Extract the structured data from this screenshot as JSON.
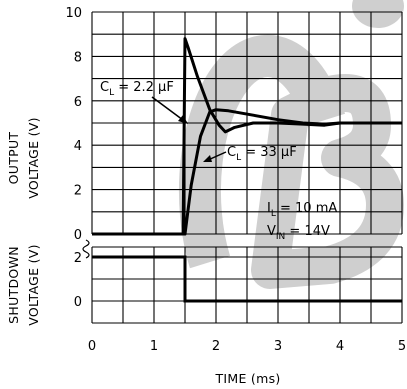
{
  "chart_data": [
    {
      "type": "line",
      "title": "",
      "xlabel": "TIME (ms)",
      "ylabel": [
        "OUTPUT",
        "VOLTAGE (V)"
      ],
      "xlim": [
        0,
        5
      ],
      "ylim": [
        0,
        10
      ],
      "x_ticks": [
        "0",
        "1",
        "2",
        "3",
        "4",
        "5"
      ],
      "y_ticks": [
        "0",
        "2",
        "4",
        "6",
        "8",
        "10"
      ],
      "grid": true,
      "series": [
        {
          "name": "CL = 2.2 µF",
          "x": [
            0,
            1.47,
            1.5,
            1.55,
            1.7,
            1.9,
            2.05,
            2.15,
            2.3,
            2.6,
            3.0,
            3.4,
            3.75,
            4.0,
            5.0
          ],
          "y": [
            0,
            0,
            8.8,
            8.4,
            7.1,
            5.6,
            4.9,
            4.6,
            4.8,
            5.0,
            5.0,
            4.95,
            4.9,
            5.0,
            5.0
          ]
        },
        {
          "name": "CL = 33 µF",
          "x": [
            0,
            1.5,
            1.6,
            1.75,
            1.9,
            2.0,
            2.2,
            2.6,
            3.0,
            3.4,
            3.75,
            4.0,
            5.0
          ],
          "y": [
            0,
            0,
            2.2,
            4.4,
            5.5,
            5.6,
            5.55,
            5.35,
            5.15,
            5.0,
            4.95,
            5.0,
            5.0
          ]
        }
      ],
      "annotations": {
        "cl1": {
          "prefix": "C",
          "sub": "L",
          "value": " = 2.2 µF"
        },
        "cl2": {
          "prefix": "C",
          "sub": "L",
          "value": " = 33 µF"
        },
        "il": {
          "prefix": "I",
          "sub": "L",
          "value": " = 10 mA"
        },
        "vin": {
          "prefix": "V",
          "sub": "IN",
          "value": " = 14V"
        }
      }
    },
    {
      "type": "line",
      "title": "",
      "xlabel": "TIME (ms)",
      "ylabel": [
        "SHUTDOWN",
        "VOLTAGE (V)"
      ],
      "xlim": [
        0,
        5
      ],
      "ylim": [
        0,
        2
      ],
      "y_ticks": [
        "0",
        "2"
      ],
      "grid": true,
      "series": [
        {
          "name": "Shutdown",
          "x": [
            0,
            1.5,
            1.5,
            5
          ],
          "y": [
            2,
            2,
            0,
            0
          ]
        }
      ]
    }
  ],
  "watermark": {
    "color": "#cfcfcf"
  }
}
